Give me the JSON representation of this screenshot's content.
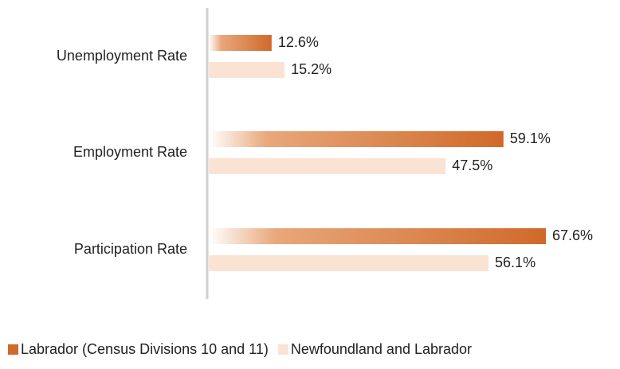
{
  "chart_data": {
    "type": "barh",
    "categories": [
      "Unemployment Rate",
      "Employment Rate",
      "Participation Rate"
    ],
    "series": [
      {
        "name": "Labrador (Census Divisions 10 and 11)",
        "color": "#d0692a",
        "values": [
          12.6,
          59.1,
          67.6
        ],
        "value_labels": [
          "12.6%",
          "59.1%",
          "67.6%"
        ]
      },
      {
        "name": "Newfoundland and Labrador",
        "color": "#fbe3d4",
        "values": [
          15.2,
          47.5,
          56.1
        ],
        "value_labels": [
          "15.2%",
          "47.5%",
          "56.1%"
        ]
      }
    ],
    "legend": "bottom"
  }
}
